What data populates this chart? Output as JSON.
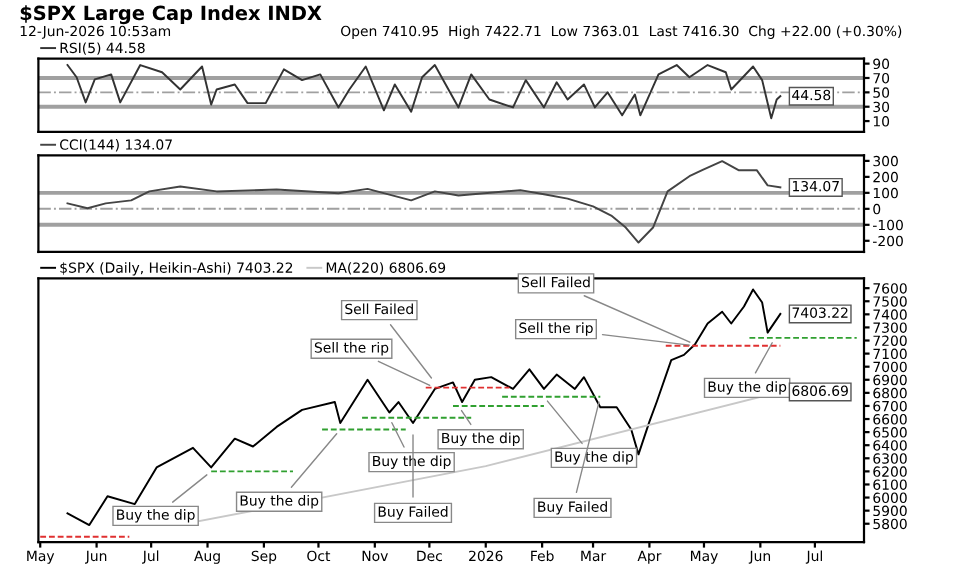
{
  "chart_data": [
    {
      "type": "line",
      "title": "$SPX Large Cap Index INDX",
      "subtitle": "12-Jun-2026 10:53am",
      "annotations": [
        "Open 7410.95  High 7422.71  Low 7363.01  Last 7416.30  Chg +22.00 (+0.30%)"
      ],
      "xlim": [
        "2025-04-30",
        "2026-07-28"
      ],
      "ylim": [
        -5,
        97
      ],
      "yticks": [
        10,
        30,
        50,
        70,
        90
      ],
      "tick_labels": "y",
      "legend": "top left",
      "grid": false,
      "ref_lines": [
        {
          "axis": "y",
          "value": 70,
          "color": "#a0a0a0",
          "line_style": "solid"
        },
        {
          "axis": "y",
          "value": 30,
          "color": "#a0a0a0",
          "line_style": "solid"
        },
        {
          "axis": "y",
          "value": 50,
          "color": "#a0a0a0",
          "line_style": "dashdot"
        }
      ],
      "series": [
        {
          "name": "RSI(5) 44.58",
          "color": "#333333",
          "x": [
            "2025-05-16",
            "2025-05-21",
            "2025-05-26",
            "2025-05-31",
            "2025-06-09",
            "2025-06-14",
            "2025-06-25",
            "2025-07-07",
            "2025-07-17",
            "2025-07-29",
            "2025-08-03",
            "2025-08-06",
            "2025-08-16",
            "2025-08-23",
            "2025-09-02",
            "2025-09-12",
            "2025-09-22",
            "2025-10-02",
            "2025-10-12",
            "2025-10-18",
            "2025-10-27",
            "2025-11-06",
            "2025-11-12",
            "2025-11-21",
            "2025-11-27",
            "2025-12-04",
            "2025-12-17",
            "2025-12-24",
            "2026-01-03",
            "2026-01-16",
            "2026-01-23",
            "2026-02-02",
            "2026-02-09",
            "2026-02-15",
            "2026-02-24",
            "2026-03-02",
            "2026-03-09",
            "2026-03-17",
            "2026-03-24",
            "2026-03-27",
            "2026-04-06",
            "2026-04-16",
            "2026-04-23",
            "2026-05-03",
            "2026-05-13",
            "2026-05-16",
            "2026-05-28",
            "2026-06-02",
            "2026-06-07",
            "2026-06-10",
            "2026-06-12"
          ],
          "values": [
            88,
            71,
            36,
            68,
            75,
            36,
            88,
            78,
            54,
            86,
            33,
            54,
            61,
            35,
            35,
            82,
            67,
            75,
            29,
            54,
            86,
            25,
            61,
            23,
            71,
            88,
            29,
            75,
            40,
            29,
            67,
            29,
            64,
            40,
            61,
            29,
            50,
            18,
            47,
            18,
            75,
            88,
            71,
            88,
            78,
            54,
            86,
            67,
            14,
            40,
            44.58
          ],
          "value_labels": [
            null,
            null,
            null,
            null,
            null,
            null,
            null,
            null,
            null,
            null,
            null,
            null,
            null,
            null,
            null,
            null,
            null,
            null,
            null,
            null,
            null,
            null,
            null,
            null,
            null,
            null,
            null,
            null,
            null,
            null,
            null,
            null,
            null,
            null,
            null,
            null,
            null,
            null,
            null,
            null,
            null,
            null,
            null,
            null,
            null,
            null,
            null,
            null,
            null,
            null,
            "44.58"
          ]
        }
      ]
    },
    {
      "type": "line",
      "xlim": [
        "2025-04-30",
        "2026-07-28"
      ],
      "ylim": [
        -270,
        335
      ],
      "yticks": [
        -200,
        -100,
        0,
        100,
        200,
        300
      ],
      "tick_labels": "y",
      "legend": "top left",
      "grid": false,
      "ref_lines": [
        {
          "axis": "y",
          "value": 100,
          "color": "#a0a0a0",
          "line_style": "solid"
        },
        {
          "axis": "y",
          "value": -100,
          "color": "#a0a0a0",
          "line_style": "solid"
        },
        {
          "axis": "y",
          "value": 0,
          "color": "#a0a0a0",
          "line_style": "dashdot"
        }
      ],
      "series": [
        {
          "name": "CCI(144) 134.07",
          "color": "#444444",
          "x": [
            "2025-05-16",
            "2025-05-27",
            "2025-06-06",
            "2025-06-20",
            "2025-06-30",
            "2025-07-17",
            "2025-08-06",
            "2025-09-08",
            "2025-10-12",
            "2025-10-28",
            "2025-11-21",
            "2025-12-04",
            "2025-12-17",
            "2026-01-20",
            "2026-02-02",
            "2026-02-15",
            "2026-03-01",
            "2026-03-11",
            "2026-03-19",
            "2026-03-26",
            "2026-04-03",
            "2026-04-11",
            "2026-04-23",
            "2026-04-30",
            "2026-05-11",
            "2026-05-20",
            "2026-05-30",
            "2026-06-05",
            "2026-06-12"
          ],
          "values": [
            34,
            4,
            34,
            53,
            109,
            140,
            109,
            121,
            98,
            125,
            53,
            109,
            83,
            117,
            91,
            64,
            15,
            -42,
            -117,
            -211,
            -117,
            109,
            204,
            242,
            298,
            242,
            242,
            147,
            134.07
          ],
          "value_labels": [
            null,
            null,
            null,
            null,
            null,
            null,
            null,
            null,
            null,
            null,
            null,
            null,
            null,
            null,
            null,
            null,
            null,
            null,
            null,
            null,
            null,
            null,
            null,
            null,
            null,
            null,
            null,
            null,
            "134.07"
          ]
        }
      ]
    },
    {
      "type": "line",
      "xlim": [
        "2025-04-30",
        "2026-07-28"
      ],
      "ylim": [
        5660,
        7675
      ],
      "yticks": [
        5800,
        5900,
        6000,
        6100,
        6200,
        6300,
        6400,
        6500,
        6600,
        6700,
        6800,
        6900,
        7000,
        7100,
        7200,
        7300,
        7400,
        7500,
        7600
      ],
      "xticks": [
        {
          "value": "2025-05-01",
          "label": "May"
        },
        {
          "value": "2025-06-01",
          "label": "Jun"
        },
        {
          "value": "2025-07-01",
          "label": "Jul"
        },
        {
          "value": "2025-08-01",
          "label": "Aug"
        },
        {
          "value": "2025-09-01",
          "label": "Sep"
        },
        {
          "value": "2025-10-01",
          "label": "Oct"
        },
        {
          "value": "2025-11-01",
          "label": "Nov"
        },
        {
          "value": "2025-12-01",
          "label": "Dec"
        },
        {
          "value": "2026-01-01",
          "label": "2026"
        },
        {
          "value": "2026-02-01",
          "label": "Feb"
        },
        {
          "value": "2026-03-01",
          "label": "Mar"
        },
        {
          "value": "2026-04-01",
          "label": "Apr"
        },
        {
          "value": "2026-05-01",
          "label": "May"
        },
        {
          "value": "2026-06-01",
          "label": "Jun"
        },
        {
          "value": "2026-07-01",
          "label": "Jul"
        }
      ],
      "legend": "top left",
      "grid": false,
      "annotations": [
        {
          "text": "Buy the dip",
          "x": "2025-08-03",
          "y": 6200
        },
        {
          "text": "Buy the dip",
          "x": "2025-10-13",
          "y": 6520
        },
        {
          "text": "Buy the dip",
          "x": "2025-11-09",
          "y": 6610
        },
        {
          "text": "Buy Failed",
          "x": "2025-11-22",
          "y": 6520
        },
        {
          "text": "Buy the dip",
          "x": "2025-12-17",
          "y": 6700
        },
        {
          "text": "Sell the rip",
          "x": "2025-12-04",
          "y": 6840
        },
        {
          "text": "Sell Failed",
          "x": "2025-12-04",
          "y": 6880
        },
        {
          "text": "Buy the dip",
          "x": "2026-02-02",
          "y": 6770
        },
        {
          "text": "Buy Failed",
          "x": "2026-03-05",
          "y": 6770
        },
        {
          "text": "Sell Failed",
          "x": "2026-04-26",
          "y": 7170
        },
        {
          "text": "Sell the rip",
          "x": "2026-04-26",
          "y": 7160
        },
        {
          "text": "Buy the dip",
          "x": "2026-06-09",
          "y": 7220
        }
      ],
      "series": [
        {
          "name": "$SPX (Daily, Heikin-Ashi) 7403.22",
          "color": "#000000",
          "x": [
            "2025-05-16",
            "2025-05-28",
            "2025-06-07",
            "2025-06-22",
            "2025-07-04",
            "2025-07-24",
            "2025-08-03",
            "2025-08-16",
            "2025-08-26",
            "2025-09-08",
            "2025-09-22",
            "2025-10-10",
            "2025-10-13",
            "2025-10-28",
            "2025-11-09",
            "2025-11-14",
            "2025-11-22",
            "2025-12-04",
            "2025-12-14",
            "2025-12-19",
            "2025-12-26",
            "2026-01-04",
            "2026-01-16",
            "2026-01-25",
            "2026-02-02",
            "2026-02-09",
            "2026-02-19",
            "2026-02-24",
            "2026-03-05",
            "2026-03-14",
            "2026-03-22",
            "2026-03-26",
            "2026-04-01",
            "2026-04-05",
            "2026-04-13",
            "2026-04-20",
            "2026-04-26",
            "2026-05-03",
            "2026-05-11",
            "2026-05-16",
            "2026-05-23",
            "2026-05-28",
            "2026-06-02",
            "2026-06-05",
            "2026-06-12"
          ],
          "values": [
            5880,
            5790,
            6010,
            5950,
            6230,
            6380,
            6230,
            6450,
            6390,
            6540,
            6670,
            6730,
            6570,
            6900,
            6650,
            6730,
            6570,
            6830,
            6880,
            6730,
            6900,
            6920,
            6830,
            6980,
            6830,
            6940,
            6830,
            6920,
            6690,
            6690,
            6520,
            6330,
            6580,
            6730,
            7050,
            7090,
            7170,
            7330,
            7420,
            7330,
            7460,
            7590,
            7490,
            7260,
            7403.22
          ],
          "value_labels": [
            null,
            null,
            null,
            null,
            null,
            null,
            null,
            null,
            null,
            null,
            null,
            null,
            null,
            null,
            null,
            null,
            null,
            null,
            null,
            null,
            null,
            null,
            null,
            null,
            null,
            null,
            null,
            null,
            null,
            null,
            null,
            null,
            null,
            null,
            null,
            null,
            null,
            null,
            null,
            null,
            null,
            null,
            null,
            null,
            "7403.22"
          ]
        },
        {
          "name": "MA(220) 6806.69",
          "color": "#c8c8c8",
          "x": [
            "2025-07-20",
            "2026-01-01",
            "2026-06-12"
          ],
          "values": [
            5800,
            6240,
            6806.69
          ],
          "value_labels": [
            null,
            null,
            "6806.69"
          ]
        },
        {
          "color": "#e03030",
          "line_style": "dashed",
          "x": [
            "2025-05-01",
            "2025-06-19"
          ],
          "values": [
            5700,
            5700
          ]
        },
        {
          "color": "#30a030",
          "line_style": "dashed",
          "x": [
            "2025-08-03",
            "2025-09-17"
          ],
          "values": [
            6200,
            6200
          ]
        },
        {
          "color": "#30a030",
          "line_style": "dashed",
          "x": [
            "2025-10-03",
            "2025-11-18"
          ],
          "values": [
            6520,
            6520
          ]
        },
        {
          "color": "#30a030",
          "line_style": "dashed",
          "x": [
            "2025-10-25",
            "2025-12-24"
          ],
          "values": [
            6610,
            6610
          ]
        },
        {
          "color": "#e03030",
          "line_style": "dashed",
          "x": [
            "2025-11-29",
            "2026-01-14"
          ],
          "values": [
            6840,
            6840
          ]
        },
        {
          "color": "#30a030",
          "line_style": "dashed",
          "x": [
            "2025-12-14",
            "2026-02-02"
          ],
          "values": [
            6700,
            6700
          ]
        },
        {
          "color": "#30a030",
          "line_style": "dashed",
          "x": [
            "2026-01-10",
            "2026-03-05"
          ],
          "values": [
            6770,
            6770
          ]
        },
        {
          "color": "#e03030",
          "line_style": "dashed",
          "x": [
            "2026-04-10",
            "2026-06-12"
          ],
          "values": [
            7160,
            7160
          ]
        },
        {
          "color": "#30a030",
          "line_style": "dashed",
          "x": [
            "2026-05-26",
            "2026-07-24"
          ],
          "values": [
            7220,
            7220
          ]
        }
      ]
    }
  ]
}
